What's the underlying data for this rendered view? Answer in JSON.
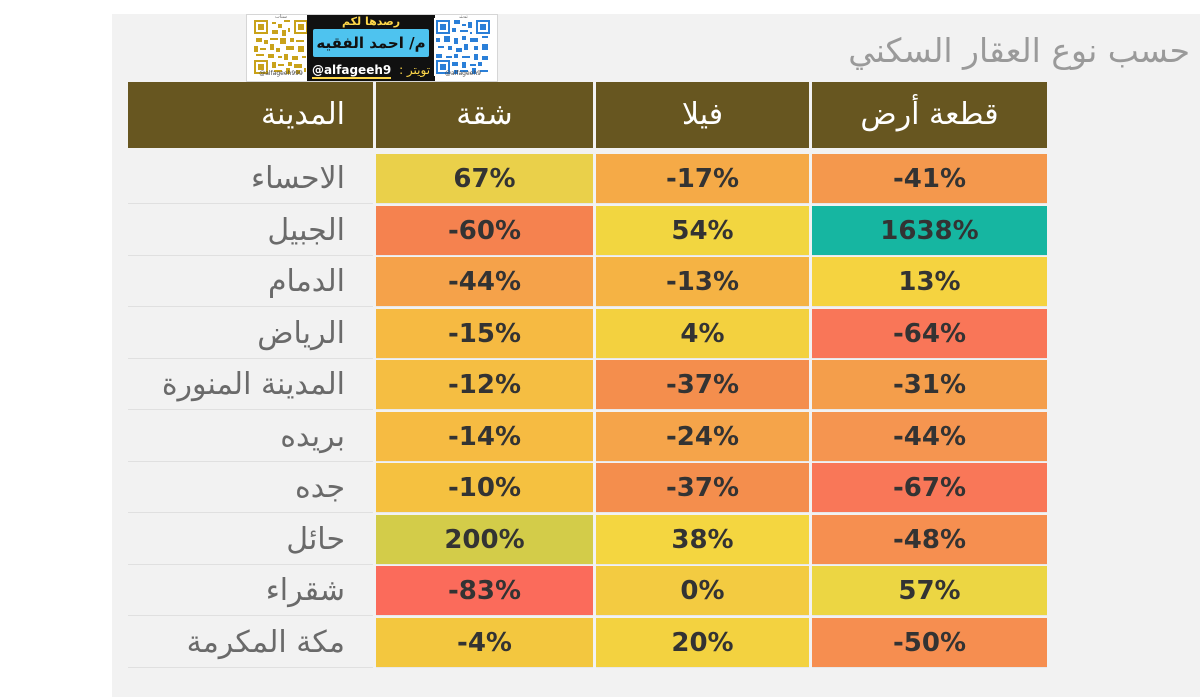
{
  "title": "حسب نوع العقار السكني",
  "banner": {
    "top_text": "رصدها لكم",
    "name": "م/ احمد الفقيه",
    "twitter_label": "تويتر :",
    "twitter_handle": "@alfageeh9",
    "qr_left_caption": "@alfageeh999",
    "qr_right_caption": "@alfageeh9",
    "qr_left_top": "سناب",
    "qr_right_top": "تويتر"
  },
  "chart_data": {
    "type": "table",
    "title": "حسب نوع العقار السكني",
    "columns": [
      "المدينة",
      "شقة",
      "فيلا",
      "قطعة أرض"
    ],
    "rows": [
      {
        "city": "الاحساء",
        "apartment": "67%",
        "villa": "-17%",
        "land": "-41%"
      },
      {
        "city": "الجبيل",
        "apartment": "-60%",
        "villa": "54%",
        "land": "1638%"
      },
      {
        "city": "الدمام",
        "apartment": "-44%",
        "villa": "-13%",
        "land": "13%"
      },
      {
        "city": "الرياض",
        "apartment": "-15%",
        "villa": "4%",
        "land": "-64%"
      },
      {
        "city": "المدينة المنورة",
        "apartment": "-12%",
        "villa": "-37%",
        "land": "-31%"
      },
      {
        "city": "بريده",
        "apartment": "-14%",
        "villa": "-24%",
        "land": "-44%"
      },
      {
        "city": "جده",
        "apartment": "-10%",
        "villa": "-37%",
        "land": "-67%"
      },
      {
        "city": "حائل",
        "apartment": "200%",
        "villa": "38%",
        "land": "-48%"
      },
      {
        "city": "شقراء",
        "apartment": "-83%",
        "villa": "0%",
        "land": "57%"
      },
      {
        "city": "مكة المكرمة",
        "apartment": "-4%",
        "villa": "20%",
        "land": "-50%"
      }
    ],
    "heatmap_colors": {
      "apartment": [
        "#ead04a",
        "#f5824f",
        "#f5a24a",
        "#f6ba42",
        "#f5be42",
        "#f6bb42",
        "#f5c140",
        "#d3cc49",
        "#fb6b5b",
        "#f3c73f"
      ],
      "villa": [
        "#f5aa47",
        "#f2d640",
        "#f5b344",
        "#f3d13f",
        "#f48e4d",
        "#f5a44a",
        "#f48e4d",
        "#f4d640",
        "#f3cb41",
        "#f3d240"
      ],
      "land": [
        "#f4984d",
        "#16b6a1",
        "#f5d340",
        "#f97658",
        "#f49e4b",
        "#f59550",
        "#f97758",
        "#f68f50",
        "#ecd643",
        "#f68e50"
      ]
    },
    "header_color": "#675620"
  }
}
